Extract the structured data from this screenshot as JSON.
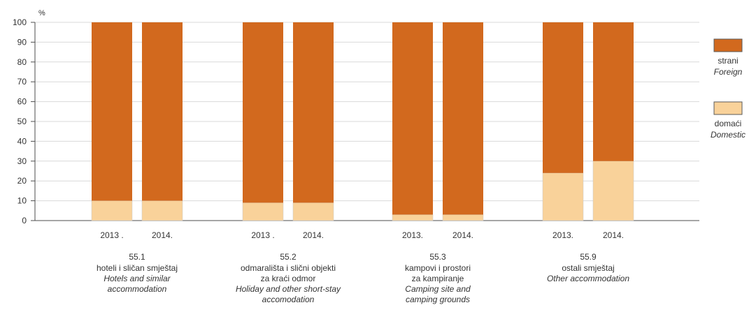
{
  "chart_data": {
    "type": "bar",
    "stacked": true,
    "unit_label": "%",
    "ylim": [
      0,
      100
    ],
    "yticks": [
      0,
      10,
      20,
      30,
      40,
      50,
      60,
      70,
      80,
      90,
      100
    ],
    "grid": true,
    "legend_position": "right",
    "colors": {
      "strani": "#d2691e",
      "domaci": "#f9d29a",
      "grid": "#d9d9d9",
      "axis": "#4d4d4d"
    },
    "groups": [
      {
        "code": "55.1",
        "label_hr": [
          "hoteli i sličan smještaj"
        ],
        "label_en": [
          "Hotels and similar",
          "accommodation"
        ],
        "bars": [
          {
            "year": "2013 .",
            "domaci": 10,
            "strani": 90
          },
          {
            "year": "2014.",
            "domaci": 10,
            "strani": 90
          }
        ]
      },
      {
        "code": "55.2",
        "label_hr": [
          "odmarališta i slični objekti",
          "za kraći odmor"
        ],
        "label_en": [
          "Holiday and other short-stay",
          "accomodation"
        ],
        "bars": [
          {
            "year": "2013 .",
            "domaci": 9,
            "strani": 91
          },
          {
            "year": "2014.",
            "domaci": 9,
            "strani": 91
          }
        ]
      },
      {
        "code": "55.3",
        "label_hr": [
          "kampovi i prostori",
          "za kampiranje"
        ],
        "label_en": [
          "Camping site and",
          "camping grounds"
        ],
        "bars": [
          {
            "year": "2013.",
            "domaci": 3,
            "strani": 97
          },
          {
            "year": "2014.",
            "domaci": 3,
            "strani": 97
          }
        ]
      },
      {
        "code": "55.9",
        "label_hr": [
          "ostali smještaj"
        ],
        "label_en": [
          "Other accommodation"
        ],
        "bars": [
          {
            "year": "2013.",
            "domaci": 24,
            "strani": 76
          },
          {
            "year": "2014.",
            "domaci": 30,
            "strani": 70
          }
        ]
      }
    ],
    "legend": [
      {
        "key": "strani",
        "label_hr": "strani",
        "label_en": "Foreign"
      },
      {
        "key": "domaci",
        "label_hr": "domaći",
        "label_en": "Domestic"
      }
    ]
  }
}
